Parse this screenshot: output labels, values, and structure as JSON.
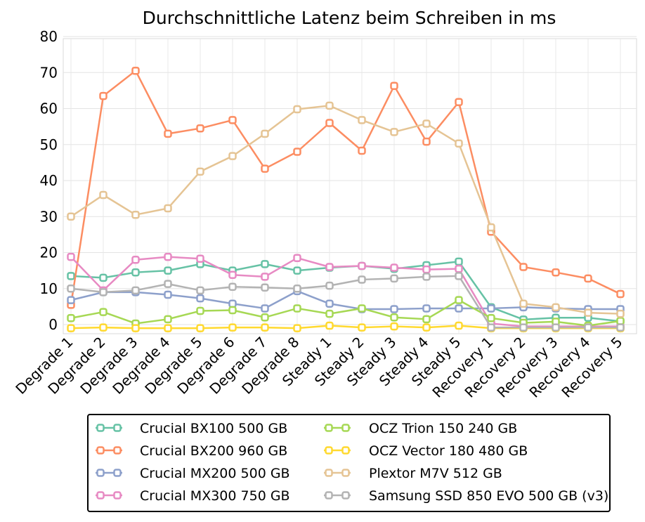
{
  "chart_data": {
    "type": "line",
    "title": "Durchschnittliche Latenz beim Schreiben in ms",
    "xlabel": "",
    "ylabel": "",
    "ylim": [
      -2,
      80
    ],
    "yticks": [
      0,
      10,
      20,
      30,
      40,
      50,
      60,
      70,
      80
    ],
    "grid": true,
    "legend_position": "bottom",
    "categories": [
      "Degrade 1",
      "Degrade 2",
      "Degrade 3",
      "Degrade 4",
      "Degrade 5",
      "Degrade 6",
      "Degrade 7",
      "Degrade 8",
      "Steady 1",
      "Steady 2",
      "Steady 3",
      "Steady 4",
      "Steady 5",
      "Recovery 1",
      "Recovery 2",
      "Recovery 3",
      "Recovery 4",
      "Recovery 5"
    ],
    "series": [
      {
        "name": "Crucial BX100 500 GB",
        "color": "#66c2a5",
        "values": [
          13.5,
          13,
          14.5,
          15,
          16.8,
          15,
          16.8,
          15,
          15.8,
          16.3,
          15.5,
          16.5,
          17.5,
          4.8,
          1.4,
          1.9,
          1.9,
          0.9
        ]
      },
      {
        "name": "Crucial BX200 960 GB",
        "color": "#fc8d62",
        "values": [
          5.5,
          63.5,
          70.5,
          53,
          54.5,
          56.8,
          43.3,
          48,
          56,
          48.3,
          66.3,
          50.8,
          61.8,
          25.8,
          16,
          14.5,
          12.8,
          8.5
        ]
      },
      {
        "name": "Crucial MX200 500 GB",
        "color": "#8da0cb",
        "values": [
          6.8,
          9,
          9,
          8.3,
          7.3,
          5.8,
          4.5,
          9.3,
          5.8,
          4.3,
          4.3,
          4.5,
          4.5,
          4.5,
          4.8,
          4.5,
          4.3,
          4.3
        ]
      },
      {
        "name": "Crucial MX300 750 GB",
        "color": "#e78ac3",
        "values": [
          18.8,
          9.5,
          18,
          18.8,
          18.3,
          13.8,
          13.3,
          18.5,
          16,
          16.3,
          15.8,
          15.3,
          15.5,
          0.3,
          -0.5,
          -0.5,
          -0.5,
          -0.5
        ]
      },
      {
        "name": "OCZ Trion 150 240 GB",
        "color": "#a6d854",
        "values": [
          1.8,
          3.5,
          0.3,
          1.5,
          3.8,
          4,
          2,
          4.5,
          3,
          4.5,
          2,
          1.5,
          6.8,
          1.8,
          0.5,
          0.8,
          -0.3,
          1
        ]
      },
      {
        "name": "OCZ Vector 180 480 GB",
        "color": "#ffd92f",
        "values": [
          -1,
          -0.8,
          -1,
          -1,
          -1,
          -0.8,
          -0.8,
          -1,
          -0.3,
          -0.8,
          -0.5,
          -0.8,
          -0.3,
          -1,
          -1,
          -1,
          -1,
          -1
        ]
      },
      {
        "name": "Plextor M7V 512 GB",
        "color": "#e5c494",
        "values": [
          30,
          36,
          30.5,
          32.3,
          42.5,
          46.8,
          53,
          59.8,
          60.8,
          56.8,
          53.5,
          55.8,
          50.3,
          27,
          5.8,
          4.8,
          3.3,
          3
        ]
      },
      {
        "name": "Samsung SSD 850 EVO 500 GB (v3)",
        "color": "#b3b3b3",
        "values": [
          10,
          9,
          9.5,
          11.3,
          9.5,
          10.5,
          10.3,
          10,
          10.8,
          12.5,
          12.8,
          13.3,
          13.5,
          -0.8,
          -0.8,
          -0.8,
          -0.8,
          -0.8
        ]
      }
    ]
  }
}
